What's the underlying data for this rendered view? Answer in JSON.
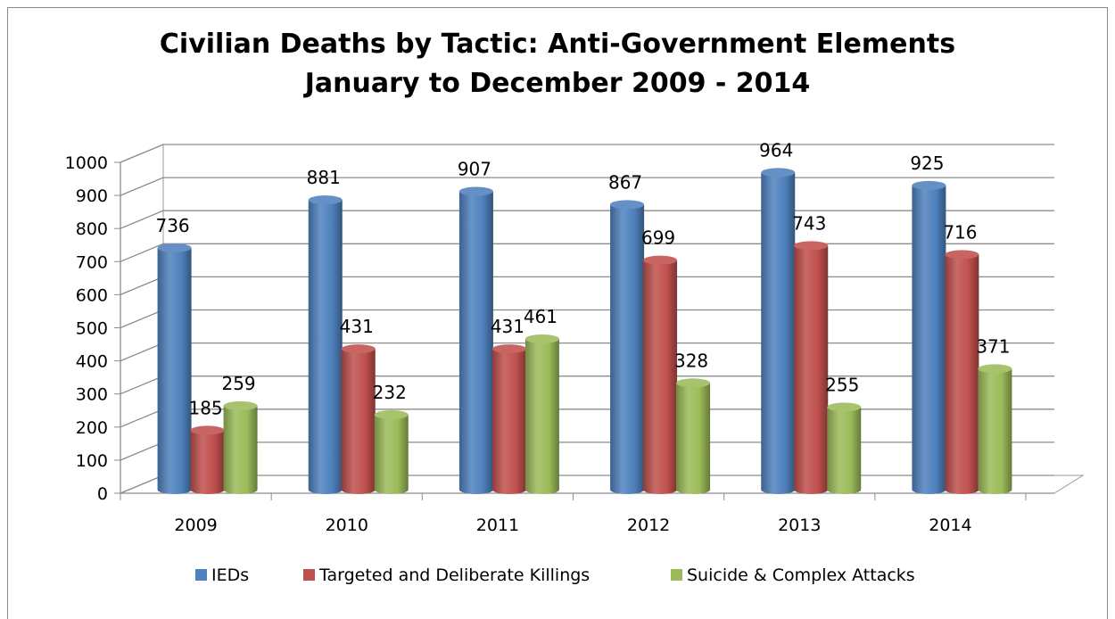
{
  "chart_data": {
    "type": "bar",
    "title_lines": [
      "Civilian Deaths by Tactic: Anti-Government Elements",
      "January to December 2009 - 2014"
    ],
    "categories": [
      "2009",
      "2010",
      "2011",
      "2012",
      "2013",
      "2014"
    ],
    "series": [
      {
        "name": "IEDs",
        "values": [
          736,
          881,
          907,
          867,
          964,
          925
        ],
        "color": "#4f81bd",
        "labels": [
          "736",
          "881",
          "907",
          "867",
          "964",
          "925"
        ]
      },
      {
        "name": "Targeted and Deliberate Killings",
        "values": [
          185,
          431,
          431,
          699,
          743,
          716
        ],
        "color": "#c0504d",
        "labels": [
          "185",
          "431",
          "431",
          "699",
          "743",
          "716"
        ]
      },
      {
        "name": "Suicide & Complex Attacks",
        "values": [
          259,
          232,
          461,
          328,
          255,
          371
        ],
        "color": "#9bbb59",
        "labels": [
          "259",
          "232",
          "461",
          "328",
          "255",
          "371"
        ]
      }
    ],
    "yticks": [
      "0",
      "100",
      "200",
      "300",
      "400",
      "500",
      "600",
      "700",
      "800",
      "900",
      "1000"
    ],
    "ylim": [
      0,
      1000
    ],
    "grid": true,
    "legend": "bottom",
    "style": "3d-cylinder"
  }
}
